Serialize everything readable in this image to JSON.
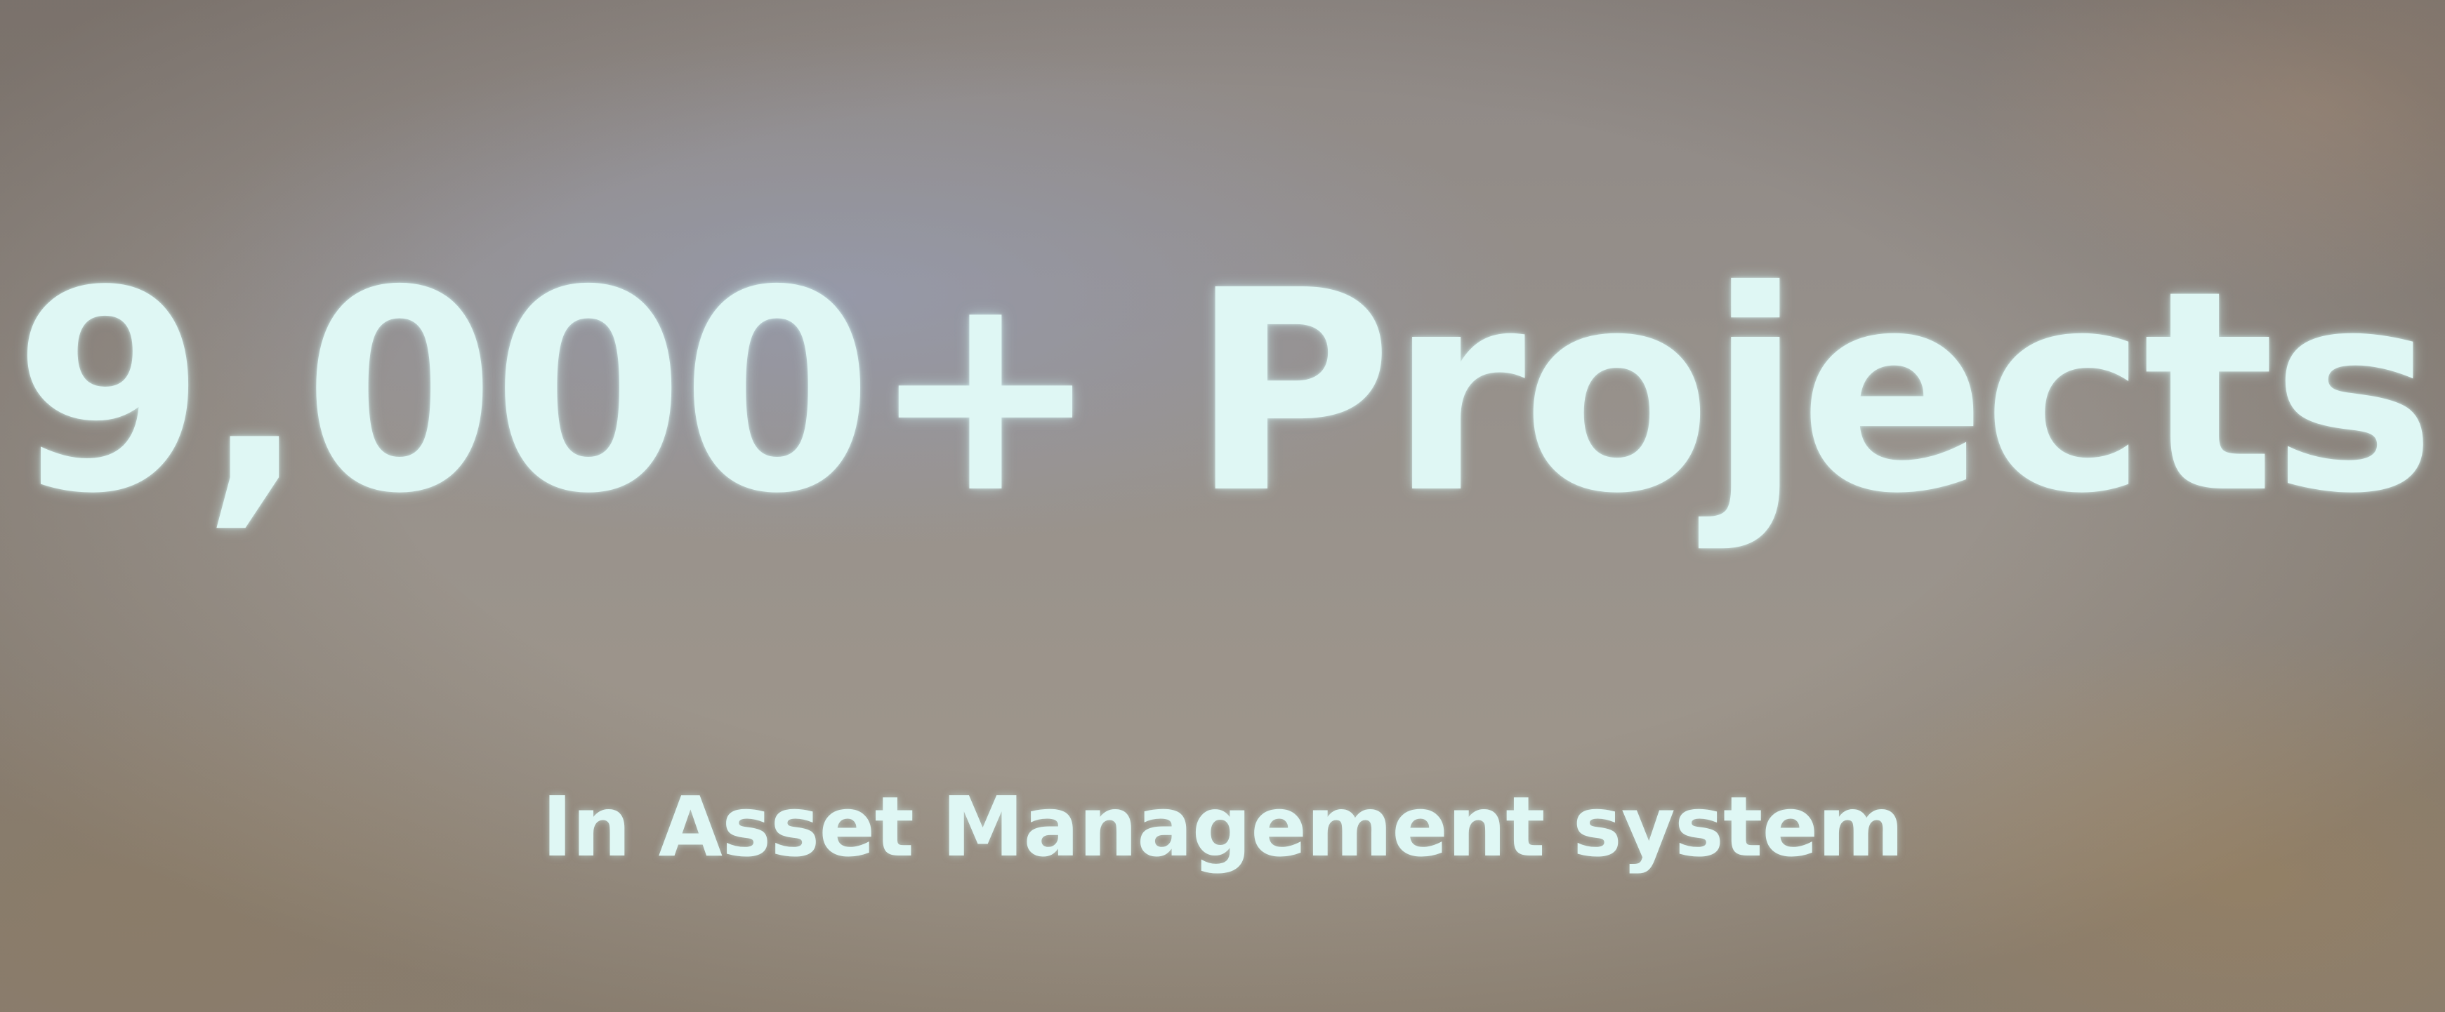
{
  "slide": {
    "headline": "9,000+ Projects",
    "subheadline": "In Asset Management system"
  },
  "colors": {
    "text": "#dff7f4",
    "background": "#958f8a"
  }
}
